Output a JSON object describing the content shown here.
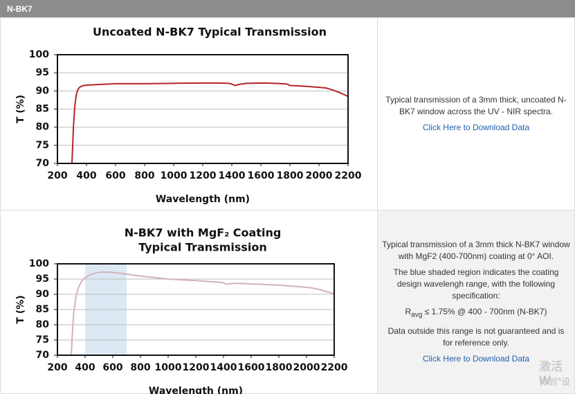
{
  "header": "N-BK7",
  "chart_data": [
    {
      "type": "line",
      "title": [
        "Uncoated N-BK7 Typical Transmission"
      ],
      "x_label": "Wavelength (nm)",
      "y_label": "T (%)",
      "x": [
        300,
        310,
        320,
        330,
        340,
        350,
        360,
        380,
        400,
        500,
        600,
        800,
        1000,
        1200,
        1300,
        1380,
        1400,
        1420,
        1450,
        1500,
        1600,
        1700,
        1780,
        1800,
        1900,
        2000,
        2050,
        2100,
        2150,
        2200
      ],
      "values": [
        70,
        80,
        86,
        89,
        90.3,
        90.9,
        91.2,
        91.5,
        91.6,
        91.8,
        92,
        92,
        92.1,
        92.2,
        92.2,
        92.1,
        91.9,
        91.5,
        91.8,
        92.1,
        92.2,
        92.1,
        91.9,
        91.5,
        91.3,
        91,
        90.8,
        90.2,
        89.4,
        88.5
      ],
      "color": "#b3252a",
      "xlim": [
        200,
        2200
      ],
      "xticks": [
        200,
        400,
        600,
        800,
        1000,
        1200,
        1400,
        1600,
        1800,
        2000,
        2200
      ],
      "ylim": [
        70,
        100
      ],
      "yticks": [
        70,
        75,
        80,
        85,
        90,
        95,
        100
      ],
      "grid": true
    },
    {
      "type": "line",
      "title": [
        "N-BK7 with MgF₂ Coating",
        "Typical Transmission"
      ],
      "x_label": "Wavelength (nm)",
      "y_label": "T (%)",
      "x": [
        300,
        310,
        320,
        335,
        350,
        375,
        400,
        450,
        500,
        550,
        600,
        700,
        800,
        1000,
        1200,
        1350,
        1400,
        1420,
        1450,
        1500,
        1600,
        1800,
        2000,
        2050,
        2100,
        2150,
        2200
      ],
      "values": [
        70,
        79,
        85,
        89.5,
        92,
        94.3,
        95.5,
        96.7,
        97.2,
        97.3,
        97.2,
        96.6,
        96,
        95,
        94.5,
        94,
        93.8,
        93.3,
        93.5,
        93.6,
        93.4,
        93,
        92.3,
        92,
        91.5,
        90.8,
        90.2
      ],
      "color": "#d4b2ba",
      "shade_x": [
        400,
        700
      ],
      "shade_color": "#dce9f5",
      "xlim": [
        200,
        2200
      ],
      "xticks": [
        200,
        400,
        600,
        800,
        1000,
        1200,
        1400,
        1600,
        1800,
        2000,
        2200
      ],
      "ylim": [
        70,
        100
      ],
      "yticks": [
        70,
        75,
        80,
        85,
        90,
        95,
        100
      ],
      "grid": true
    }
  ],
  "descriptions": [
    {
      "text": "Typical transmission of a 3mm thick, uncoated N-BK7 window across the UV - NIR spectra.",
      "link": "Click Here to Download Data"
    },
    {
      "text": "Typical transmission of a 3mm thick N-BK7 window with MgF2 (400-700nm) coating at 0° AOI.",
      "text2": "The blue shaded region indicates the coating design wavelengh range, with the following specification:",
      "spec": {
        "symbol": "R",
        "sub": "avg",
        "rest": " ≤ 1.75% @ 400 - 700nm (N-BK7)"
      },
      "note": "Data outside this range is not guaranteed and is for reference only.",
      "link": "Click Here to Download Data"
    }
  ],
  "watermark": [
    "激活 W",
    "转到\"设"
  ]
}
